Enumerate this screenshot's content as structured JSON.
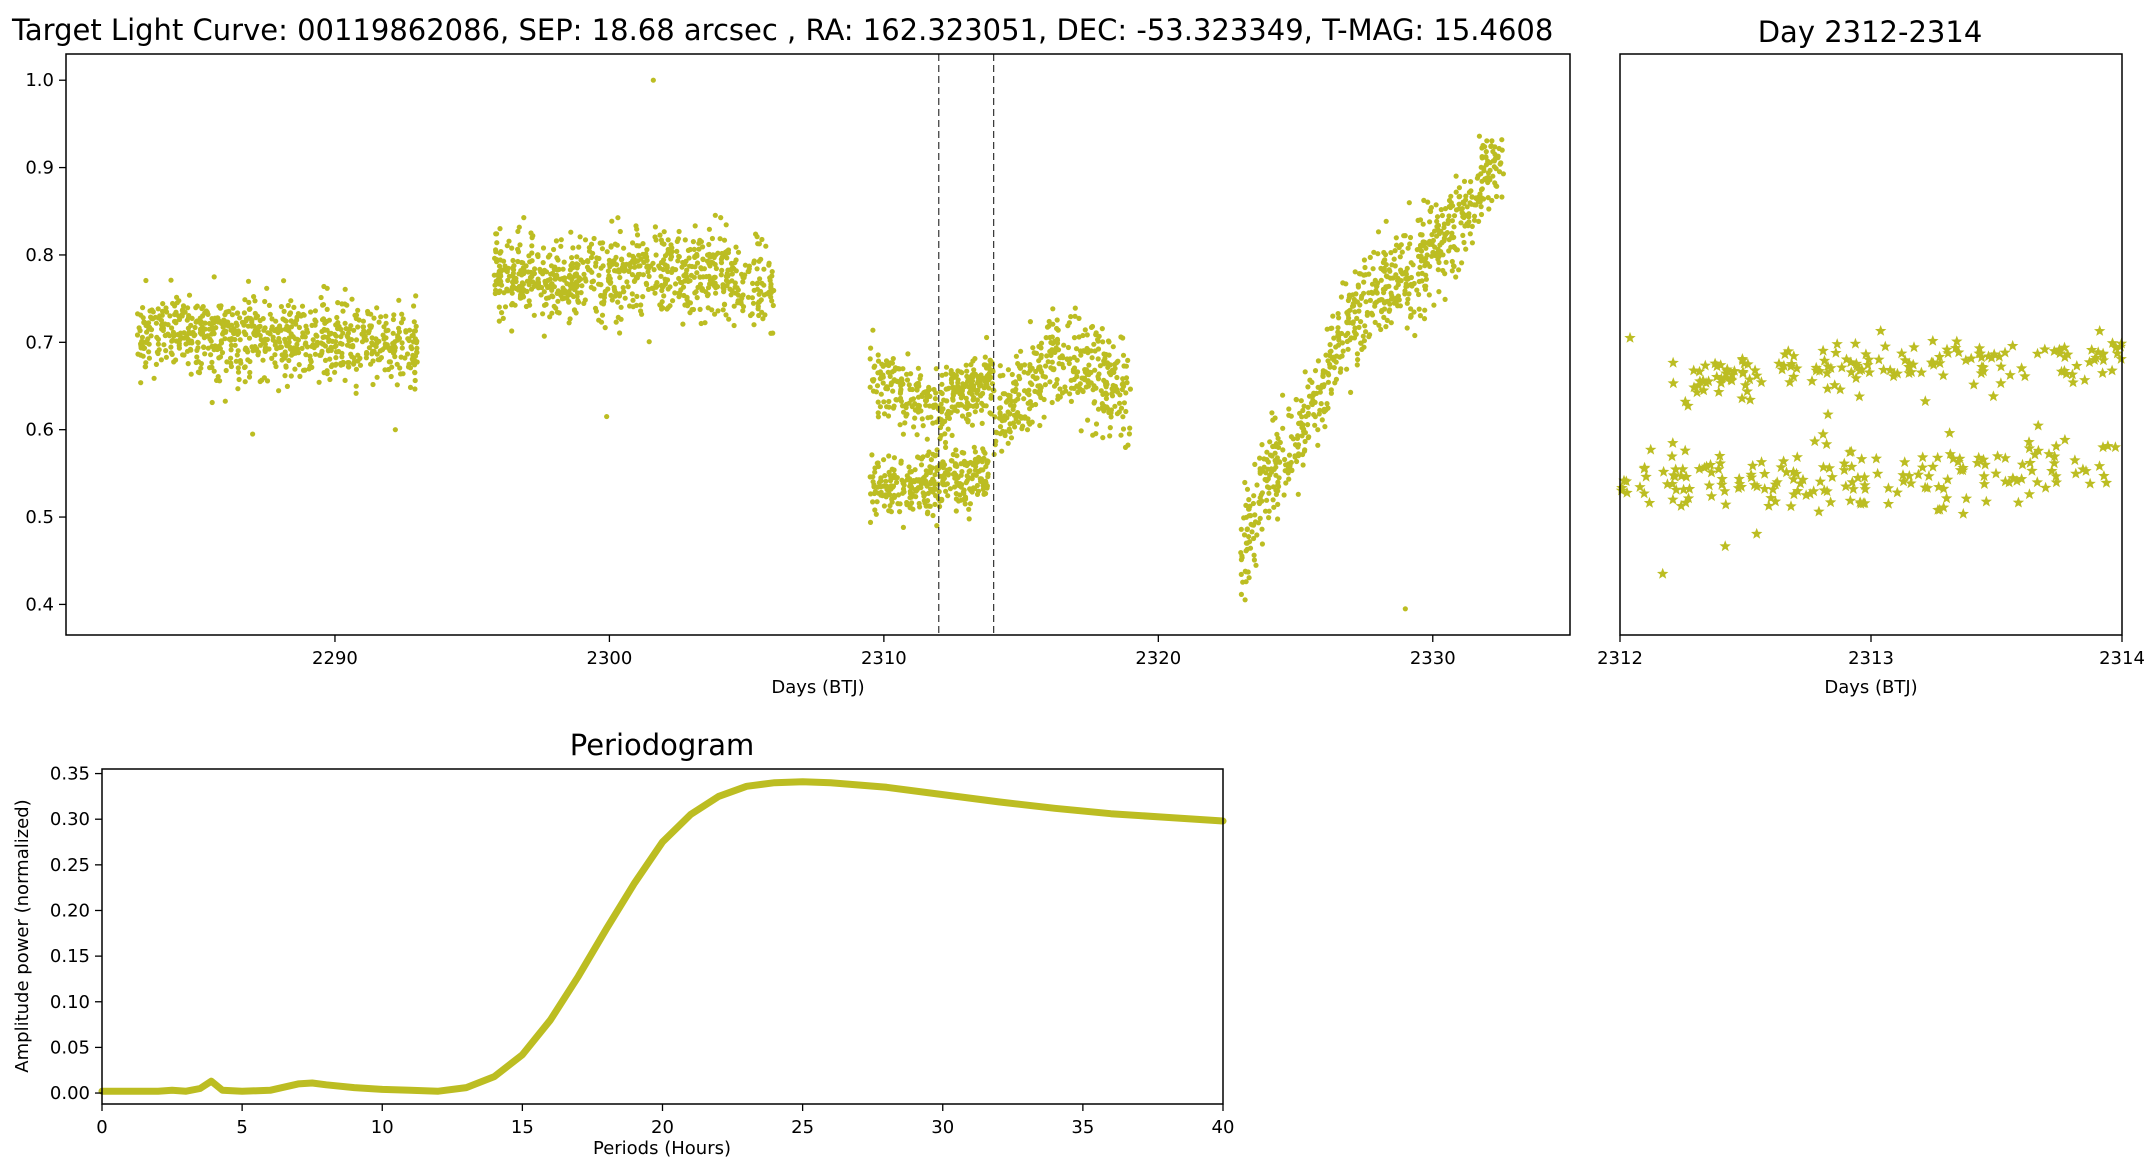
{
  "chart_data": [
    {
      "id": "light-curve",
      "type": "scatter",
      "title": "Target Light Curve: 00119862086, SEP: 18.68 arcsec , RA: 162.323051, DEC: -53.323349, T-MAG: 15.4608",
      "xlabel": "Days (BTJ)",
      "ylabel": "",
      "xlim": [
        2280.2,
        2335.0
      ],
      "ylim": [
        0.365,
        1.03
      ],
      "xticks": [
        2290,
        2300,
        2310,
        2320,
        2330
      ],
      "yticks": [
        0.4,
        0.5,
        0.6,
        0.7,
        0.8,
        0.9,
        1.0
      ],
      "grid": false,
      "marker": "circle",
      "color": "#bcbd22",
      "vlines": [
        2312,
        2314
      ],
      "segments": [
        {
          "x_range": [
            2282.8,
            2293.0
          ],
          "trend": [
            [
              2282.8,
              0.71
            ],
            [
              2286.0,
              0.71
            ],
            [
              2290.0,
              0.7
            ],
            [
              2293.0,
              0.7
            ]
          ],
          "spread": 0.04
        },
        {
          "x_range": [
            2295.8,
            2306.0
          ],
          "trend": [
            [
              2295.8,
              0.78
            ],
            [
              2298.0,
              0.77
            ],
            [
              2301.0,
              0.78
            ],
            [
              2304.0,
              0.775
            ],
            [
              2306.0,
              0.765
            ]
          ],
          "spread": 0.04
        },
        {
          "x_range": [
            2309.5,
            2313.8
          ],
          "trend": [
            [
              2309.5,
              0.53
            ],
            [
              2311.0,
              0.54
            ],
            [
              2313.8,
              0.55
            ]
          ],
          "spread": 0.03
        },
        {
          "x_range": [
            2309.5,
            2314.0
          ],
          "trend": [
            [
              2309.5,
              0.66
            ],
            [
              2312.0,
              0.63
            ],
            [
              2314.0,
              0.66
            ]
          ],
          "spread": 0.03
        },
        {
          "x_range": [
            2314.0,
            2319.0
          ],
          "trend": [
            [
              2314.0,
              0.6
            ],
            [
              2316.0,
              0.68
            ],
            [
              2317.5,
              0.67
            ],
            [
              2319.0,
              0.63
            ]
          ],
          "spread": 0.045
        },
        {
          "x_range": [
            2323.0,
            2332.6
          ],
          "trend": [
            [
              2323.0,
              0.45
            ],
            [
              2324.0,
              0.55
            ],
            [
              2325.0,
              0.58
            ],
            [
              2326.0,
              0.65
            ],
            [
              2327.0,
              0.73
            ],
            [
              2328.5,
              0.77
            ],
            [
              2330.0,
              0.8
            ],
            [
              2331.5,
              0.86
            ],
            [
              2332.6,
              0.93
            ]
          ],
          "spread": 0.045
        }
      ],
      "outliers": [
        [
          2301.6,
          1.0
        ],
        [
          2329.0,
          0.395
        ],
        [
          2299.9,
          0.615
        ],
        [
          2287.0,
          0.595
        ],
        [
          2292.2,
          0.6
        ]
      ]
    },
    {
      "id": "zoom",
      "type": "scatter",
      "title": "Day 2312-2314",
      "xlabel": "Days (BTJ)",
      "ylabel": "",
      "xlim": [
        2312,
        2314
      ],
      "ylim": [
        0.365,
        1.03
      ],
      "xticks": [
        2312,
        2313,
        2314
      ],
      "yticks": [],
      "grid": false,
      "marker": "star",
      "color": "#bcbd22",
      "segments": [
        {
          "x_range": [
            2312.0,
            2314.0
          ],
          "trend": [
            [
              2312.0,
              0.54
            ],
            [
              2313.0,
              0.545
            ],
            [
              2314.0,
              0.56
            ]
          ],
          "spread": 0.03
        },
        {
          "x_range": [
            2312.2,
            2314.0
          ],
          "trend": [
            [
              2312.2,
              0.66
            ],
            [
              2313.0,
              0.67
            ],
            [
              2314.0,
              0.68
            ]
          ],
          "spread": 0.025
        }
      ],
      "outliers": [
        [
          2312.17,
          0.435
        ],
        [
          2312.04,
          0.705
        ]
      ]
    },
    {
      "id": "periodogram",
      "type": "line",
      "title": "Periodogram",
      "xlabel": "Periods (Hours)",
      "ylabel": "Amplitude power (normalized)",
      "xlim": [
        0,
        40
      ],
      "ylim": [
        -0.012,
        0.355
      ],
      "xticks": [
        0,
        5,
        10,
        15,
        20,
        25,
        30,
        35,
        40
      ],
      "yticks": [
        0.0,
        0.05,
        0.1,
        0.15,
        0.2,
        0.25,
        0.3,
        0.35
      ],
      "ytick_labels": [
        "0.00",
        "0.05",
        "0.10",
        "0.15",
        "0.20",
        "0.25",
        "0.30",
        "0.35"
      ],
      "grid": false,
      "color": "#bcbd22",
      "x": [
        0,
        1,
        2,
        2.5,
        3,
        3.5,
        3.9,
        4.3,
        5,
        6,
        7,
        7.5,
        8,
        9,
        10,
        11,
        12,
        13,
        14,
        15,
        16,
        17,
        18,
        19,
        20,
        21,
        22,
        23,
        24,
        25,
        26,
        28,
        30,
        32,
        34,
        36,
        38,
        40
      ],
      "y": [
        0.002,
        0.002,
        0.002,
        0.003,
        0.002,
        0.005,
        0.013,
        0.003,
        0.002,
        0.003,
        0.01,
        0.011,
        0.009,
        0.006,
        0.004,
        0.003,
        0.002,
        0.006,
        0.018,
        0.042,
        0.08,
        0.128,
        0.18,
        0.23,
        0.275,
        0.305,
        0.325,
        0.336,
        0.34,
        0.341,
        0.34,
        0.335,
        0.327,
        0.319,
        0.312,
        0.306,
        0.302,
        0.298
      ]
    }
  ]
}
